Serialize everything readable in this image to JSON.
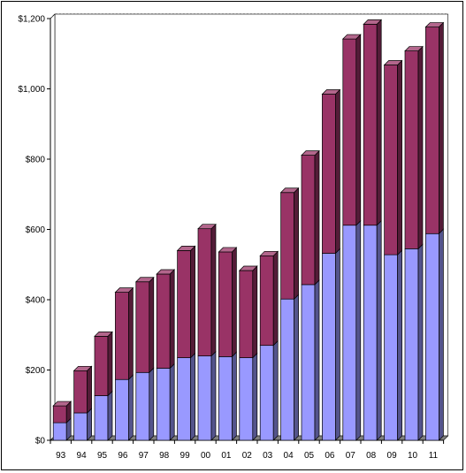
{
  "chart_data": {
    "type": "bar",
    "stacked": true,
    "three_d": true,
    "categories": [
      "93",
      "94",
      "95",
      "96",
      "97",
      "98",
      "99",
      "00",
      "01",
      "02",
      "03",
      "04",
      "05",
      "06",
      "07",
      "08",
      "09",
      "10",
      "11"
    ],
    "series": [
      {
        "color": "#9999ff",
        "values": [
          50,
          78,
          127,
          173,
          193,
          205,
          235,
          240,
          238,
          235,
          270,
          402,
          443,
          532,
          612,
          612,
          528,
          545,
          588
        ]
      },
      {
        "color": "#993366",
        "values": [
          48,
          120,
          169,
          248,
          258,
          268,
          305,
          362,
          298,
          248,
          255,
          303,
          368,
          453,
          530,
          572,
          540,
          563,
          588
        ]
      }
    ],
    "ylim": [
      0,
      1200
    ],
    "yticks": [
      "$0",
      "$200",
      "$400",
      "$600",
      "$800",
      "$1,000",
      "$1,200"
    ],
    "ytick_values": [
      0,
      200,
      400,
      600,
      800,
      1000,
      1200
    ],
    "grid": "horizontal dotted",
    "legend": "none"
  }
}
